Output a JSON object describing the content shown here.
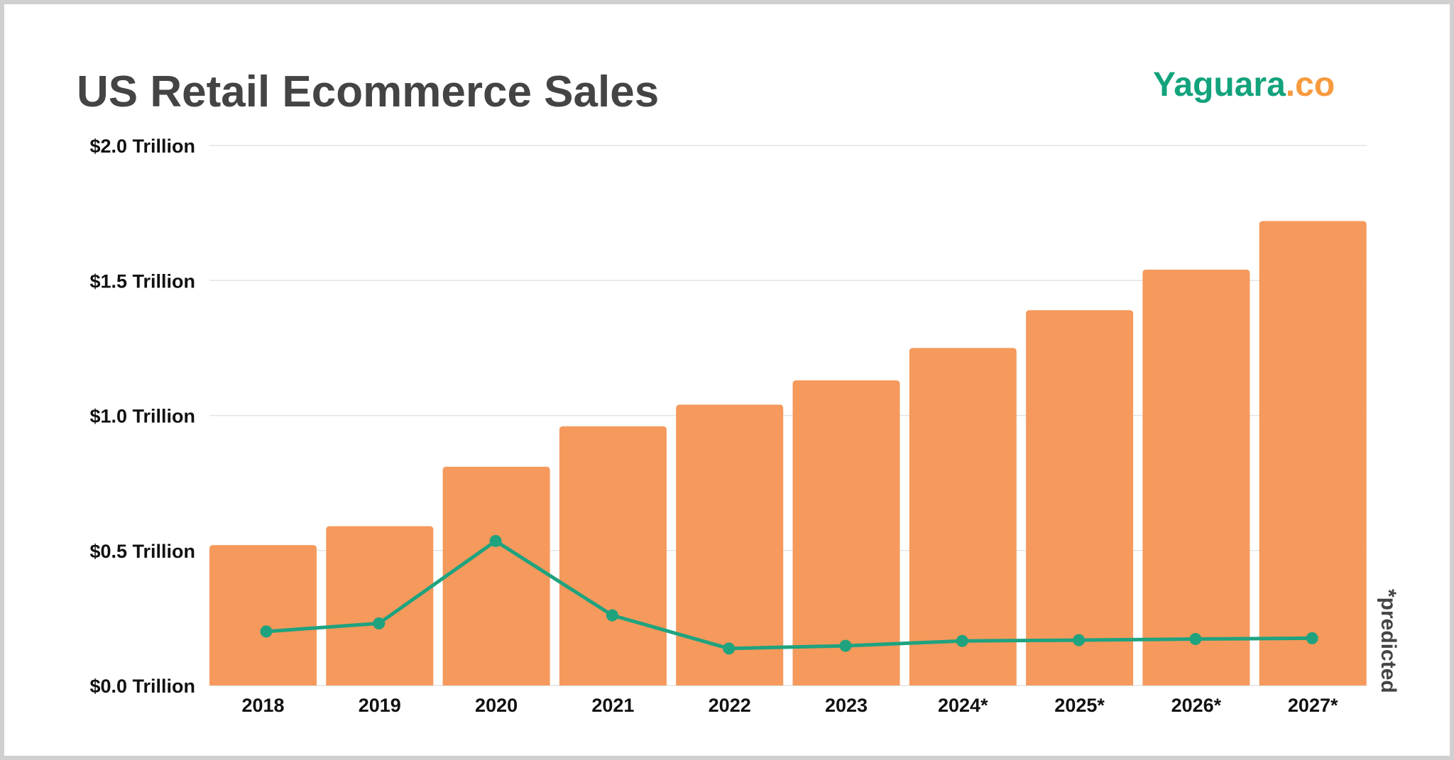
{
  "chart_data": {
    "type": "bar",
    "title": "US Retail Ecommerce Sales",
    "categories": [
      "2018",
      "2019",
      "2020",
      "2021",
      "2022",
      "2023",
      "2024*",
      "2025*",
      "2026*",
      "2027*"
    ],
    "series": [
      {
        "type": "bar",
        "color": "#f5995c",
        "values": [
          0.52,
          0.59,
          0.81,
          0.96,
          1.04,
          1.13,
          1.25,
          1.39,
          1.54,
          1.72
        ]
      },
      {
        "type": "line",
        "color": "#1fa37f",
        "values": [
          0.2,
          0.23,
          0.535,
          0.26,
          0.137,
          0.147,
          0.165,
          0.168,
          0.172,
          0.175
        ]
      }
    ],
    "yticks": [
      "$0.0 Trillion",
      "$0.5 Trillion",
      "$1.0 Trillion",
      "$1.5 Trillion",
      "$2.0 Trillion"
    ],
    "ylim": [
      0,
      2.0
    ],
    "grid": true,
    "annotation": "*predicted"
  },
  "brand": {
    "name": "Yaguara",
    "suffix": ".co",
    "color": "#12a37c",
    "suffix_color": "#f89a3e"
  }
}
